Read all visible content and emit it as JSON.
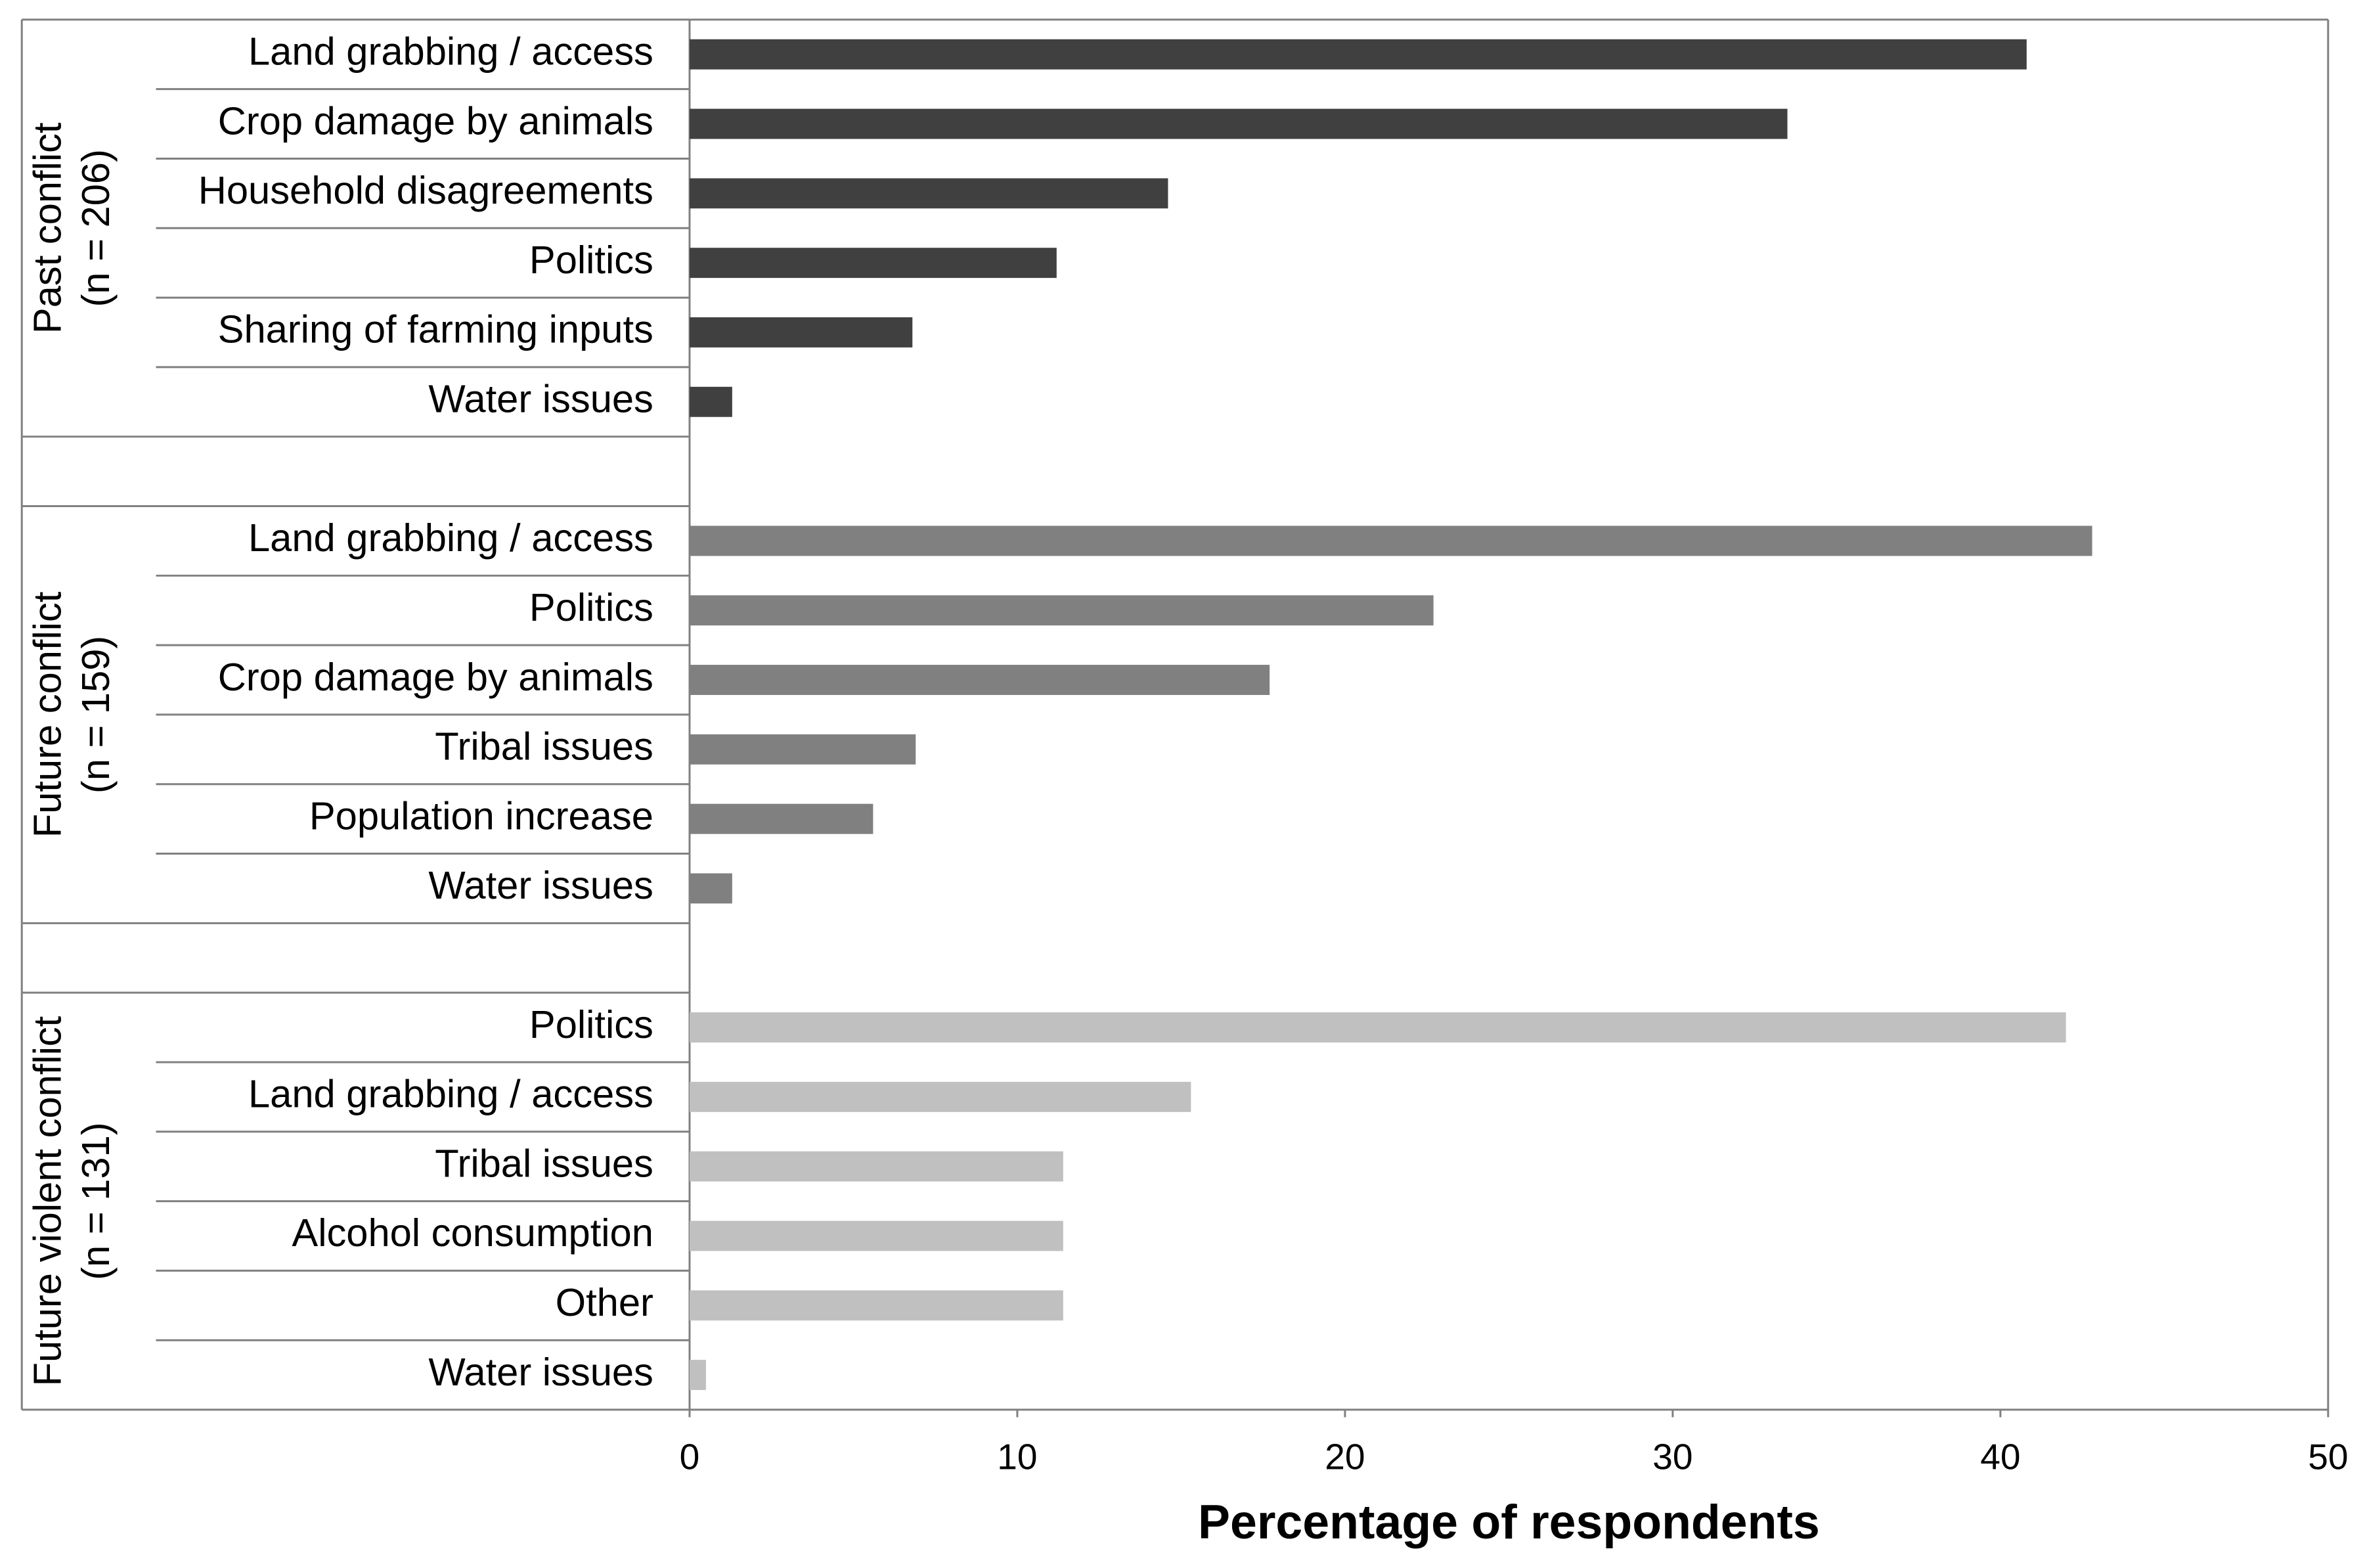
{
  "chart_data": {
    "type": "bar",
    "orientation": "horizontal",
    "xlabel": "Percentage of respondents",
    "xlim": [
      0,
      50
    ],
    "xticks": [
      0,
      10,
      20,
      30,
      40,
      50
    ],
    "series": [
      {
        "name": "Past conflict",
        "subtitle": "(n = 206)",
        "color": "#404040",
        "categories": [
          "Land grabbing / access",
          "Crop damage by animals",
          "Household disagreements",
          "Politics",
          "Sharing of farming inputs",
          "Water issues"
        ],
        "values": [
          40.8,
          33.5,
          14.6,
          11.2,
          6.8,
          1.3
        ]
      },
      {
        "name": "Future conflict",
        "subtitle": "(n = 159)",
        "color": "#808080",
        "categories": [
          "Land grabbing / access",
          "Politics",
          "Crop damage by animals",
          "Tribal issues",
          "Population increase",
          "Water issues"
        ],
        "values": [
          42.8,
          22.7,
          17.7,
          6.9,
          5.6,
          1.3
        ]
      },
      {
        "name": "Future violent conflict",
        "subtitle": "(n = 131)",
        "color": "#c0c0c0",
        "categories": [
          "Politics",
          "Land grabbing / access",
          "Tribal issues",
          "Alcohol consumption",
          "Other",
          "Water issues"
        ],
        "values": [
          42.0,
          15.3,
          11.4,
          11.4,
          11.4,
          0.5
        ]
      }
    ]
  }
}
